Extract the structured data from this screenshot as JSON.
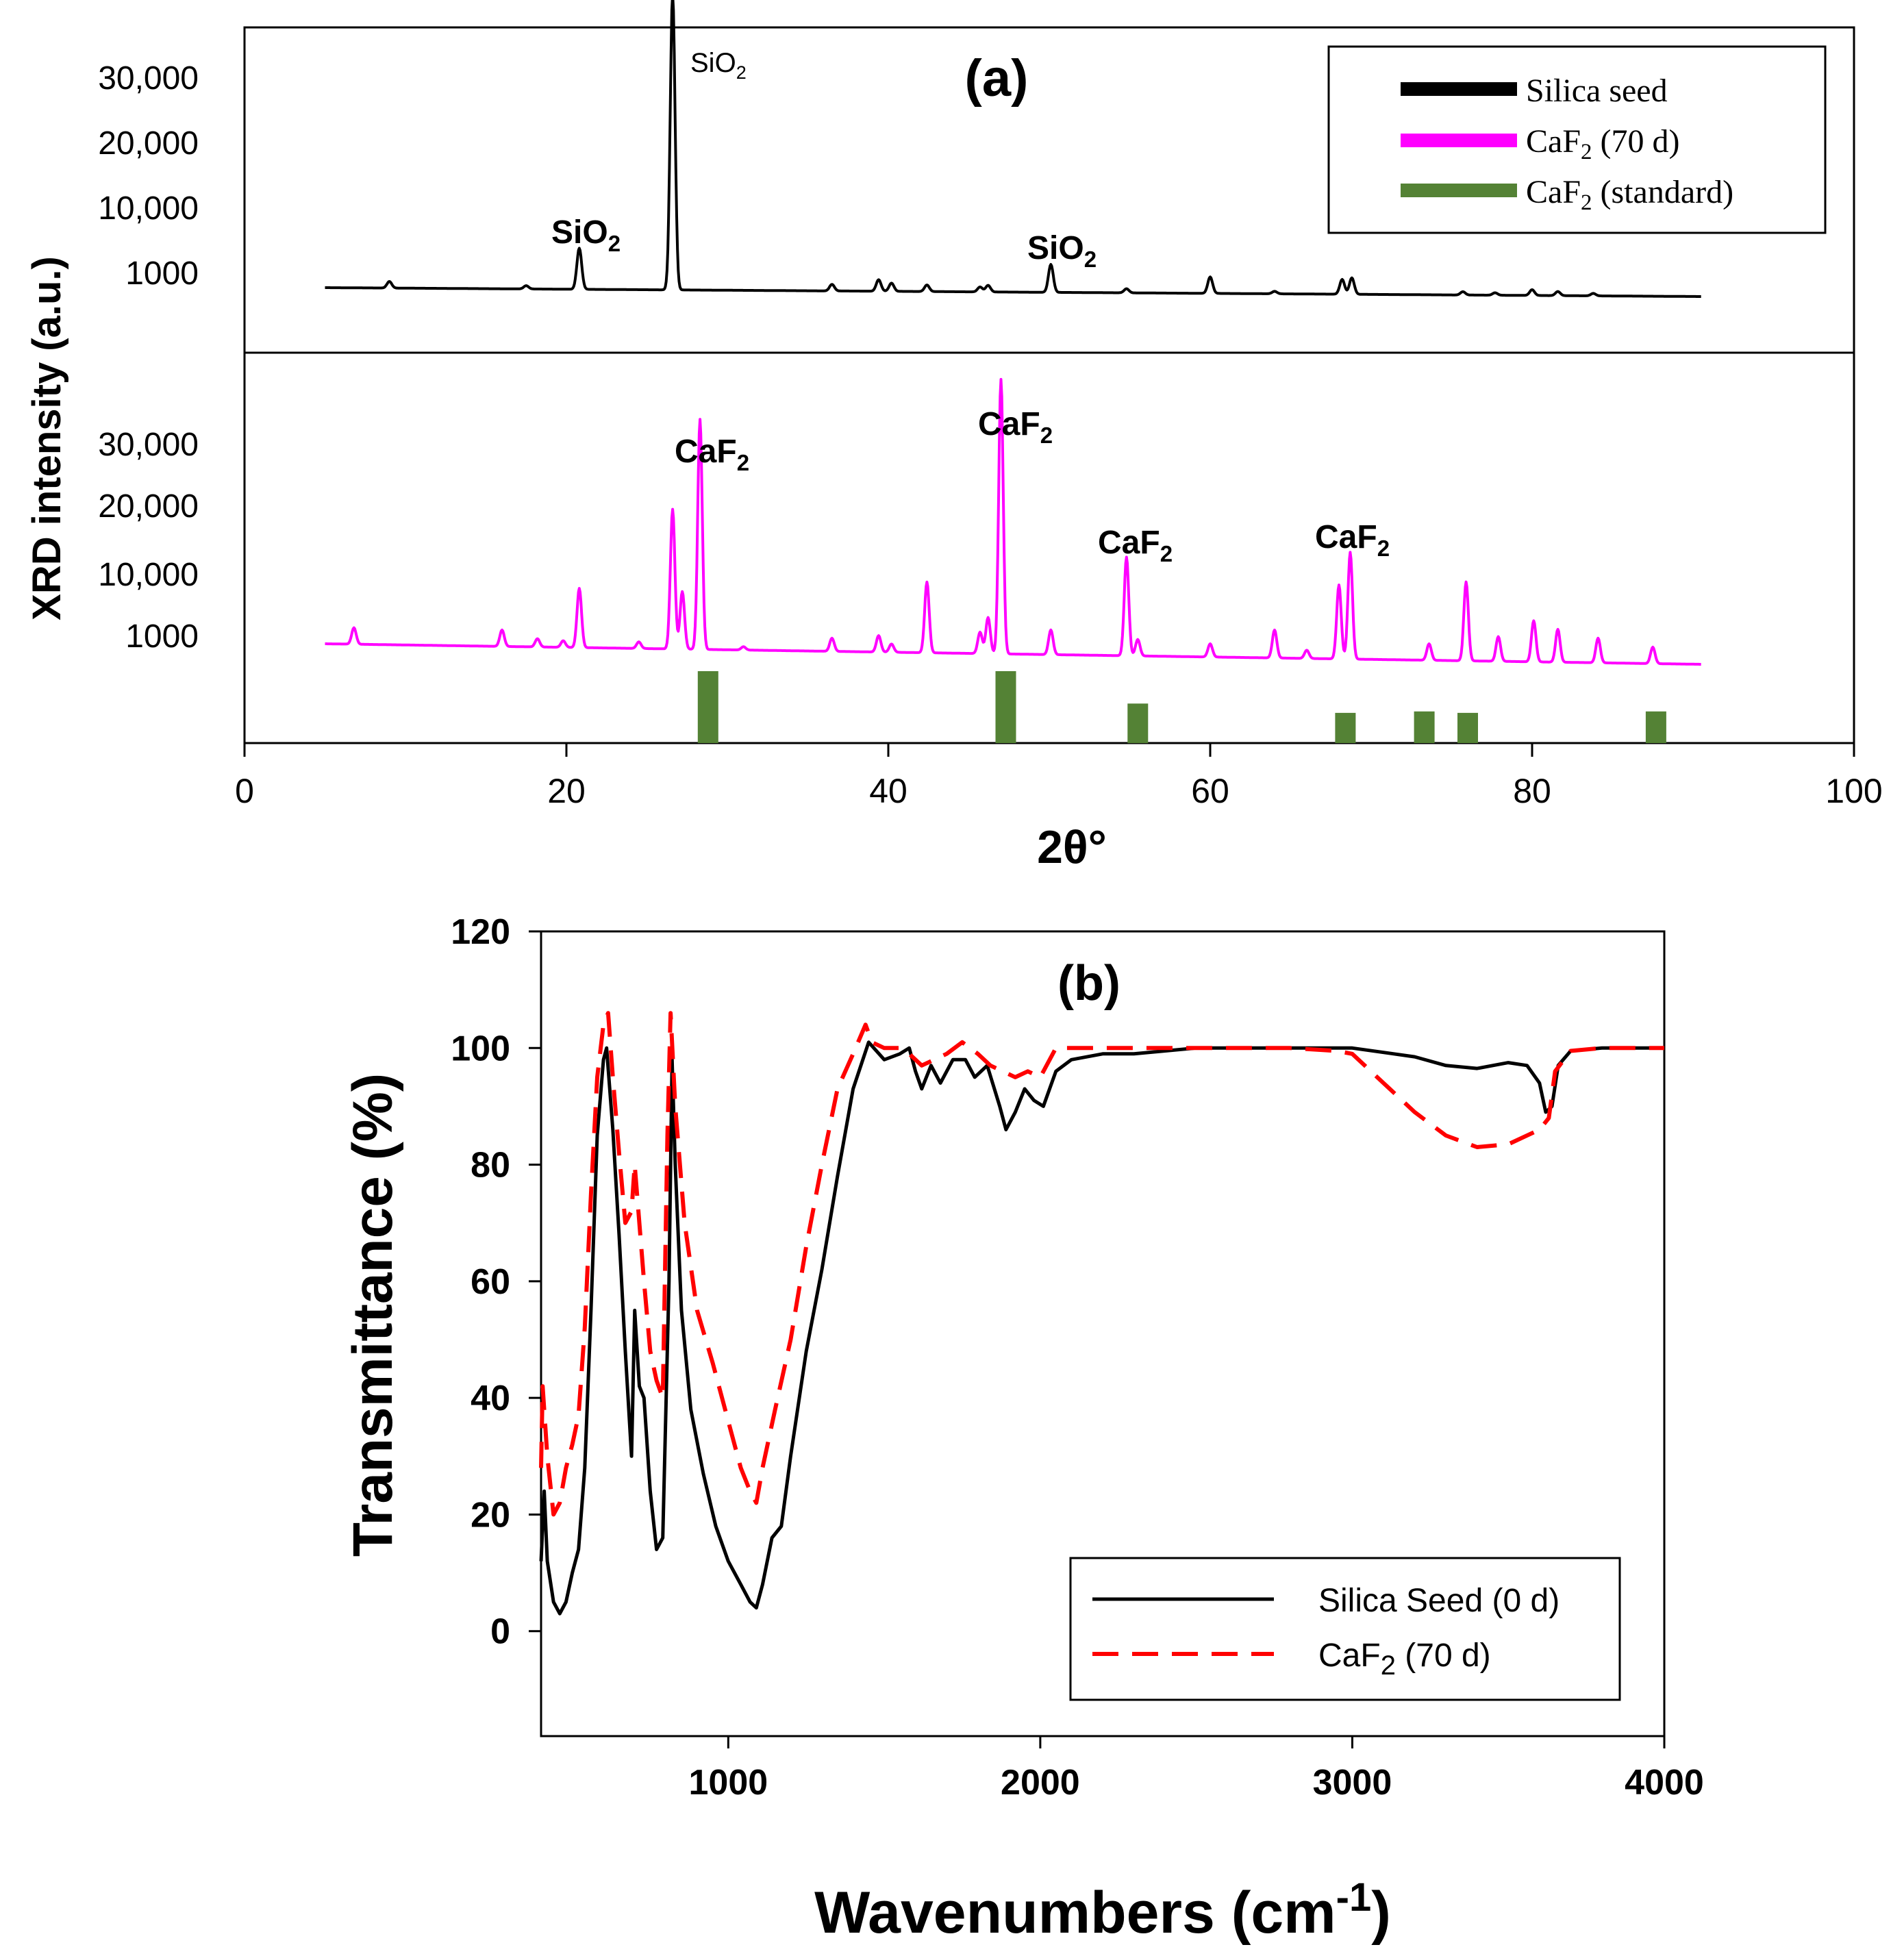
{
  "chart_data": [
    {
      "panel": "(a)",
      "type": "line",
      "title": "(a)",
      "xlabel": "2θ°",
      "ylabel": "XRD intensity (a.u.)",
      "xlim": [
        0,
        100
      ],
      "x_ticks": [
        "0",
        "20",
        "40",
        "60",
        "80",
        "100"
      ],
      "y_ticks": [
        "30,000",
        "20,000",
        "10,000",
        "1000"
      ],
      "legend": {
        "position": "top-right",
        "entries": [
          {
            "label": "Silica seed",
            "color": "#000000"
          },
          {
            "label_main": "CaF",
            "label_sub": "2",
            "label_rest": " (70 d)",
            "color": "#ff00ff"
          },
          {
            "label_main": "CaF",
            "label_sub": "2",
            "label_rest": " (standard)",
            "color": "#548235"
          }
        ]
      },
      "annotations": [
        {
          "main": "SiO",
          "sub": "2"
        },
        {
          "main": "SiO",
          "sub": "2"
        },
        {
          "main": "SiO",
          "sub": "2"
        },
        {
          "main": "CaF",
          "sub": "2"
        },
        {
          "main": "CaF",
          "sub": "2"
        },
        {
          "main": "CaF",
          "sub": "2"
        },
        {
          "main": "CaF",
          "sub": "2"
        }
      ],
      "series": [
        {
          "name": "Silica seed",
          "color": "#000000",
          "peaks": [
            {
              "x": 9.0,
              "h": 0.08
            },
            {
              "x": 17.5,
              "h": 0.04
            },
            {
              "x": 20.8,
              "h": 0.5
            },
            {
              "x": 26.6,
              "h": 3.6
            },
            {
              "x": 36.5,
              "h": 0.08
            },
            {
              "x": 39.4,
              "h": 0.14
            },
            {
              "x": 40.2,
              "h": 0.1
            },
            {
              "x": 42.4,
              "h": 0.08
            },
            {
              "x": 45.7,
              "h": 0.06
            },
            {
              "x": 46.2,
              "h": 0.08
            },
            {
              "x": 50.1,
              "h": 0.34
            },
            {
              "x": 54.8,
              "h": 0.05
            },
            {
              "x": 60.0,
              "h": 0.2
            },
            {
              "x": 64.0,
              "h": 0.03
            },
            {
              "x": 68.2,
              "h": 0.18
            },
            {
              "x": 68.8,
              "h": 0.2
            },
            {
              "x": 75.7,
              "h": 0.04
            },
            {
              "x": 77.7,
              "h": 0.03
            },
            {
              "x": 80.0,
              "h": 0.07
            },
            {
              "x": 81.6,
              "h": 0.05
            },
            {
              "x": 83.8,
              "h": 0.03
            }
          ]
        },
        {
          "name": "CaF2 (70 d)",
          "color": "#ff00ff",
          "peaks": [
            {
              "x": 6.8,
              "h": 0.2
            },
            {
              "x": 16.0,
              "h": 0.2
            },
            {
              "x": 18.2,
              "h": 0.1
            },
            {
              "x": 19.8,
              "h": 0.08
            },
            {
              "x": 20.8,
              "h": 0.72
            },
            {
              "x": 24.5,
              "h": 0.08
            },
            {
              "x": 26.6,
              "h": 1.7
            },
            {
              "x": 27.2,
              "h": 0.7
            },
            {
              "x": 28.3,
              "h": 2.8
            },
            {
              "x": 31.0,
              "h": 0.04
            },
            {
              "x": 36.5,
              "h": 0.16
            },
            {
              "x": 39.4,
              "h": 0.2
            },
            {
              "x": 40.2,
              "h": 0.1
            },
            {
              "x": 42.4,
              "h": 0.86
            },
            {
              "x": 45.7,
              "h": 0.26
            },
            {
              "x": 46.2,
              "h": 0.44
            },
            {
              "x": 47.0,
              "h": 3.34
            },
            {
              "x": 50.1,
              "h": 0.3
            },
            {
              "x": 54.8,
              "h": 1.2
            },
            {
              "x": 55.5,
              "h": 0.2
            },
            {
              "x": 60.0,
              "h": 0.16
            },
            {
              "x": 64.0,
              "h": 0.34
            },
            {
              "x": 66.0,
              "h": 0.1
            },
            {
              "x": 68.0,
              "h": 0.9
            },
            {
              "x": 68.7,
              "h": 1.3
            },
            {
              "x": 73.6,
              "h": 0.2
            },
            {
              "x": 75.9,
              "h": 0.96
            },
            {
              "x": 77.9,
              "h": 0.3
            },
            {
              "x": 80.1,
              "h": 0.5
            },
            {
              "x": 81.6,
              "h": 0.4
            },
            {
              "x": 84.1,
              "h": 0.3
            },
            {
              "x": 87.5,
              "h": 0.2
            }
          ]
        },
        {
          "name": "CaF2 (standard)",
          "color": "#548235",
          "type": "bar",
          "bars": [
            {
              "x": 28.8,
              "rel": 1.0
            },
            {
              "x": 47.3,
              "rel": 1.0
            },
            {
              "x": 55.5,
              "rel": 0.55
            },
            {
              "x": 68.4,
              "rel": 0.42
            },
            {
              "x": 73.3,
              "rel": 0.44
            },
            {
              "x": 76.0,
              "rel": 0.42
            },
            {
              "x": 87.7,
              "rel": 0.44
            }
          ]
        }
      ]
    },
    {
      "panel": "(b)",
      "type": "line",
      "title": "(b)",
      "xlabel_main": "Wavenumbers (cm",
      "xlabel_sup": "-1",
      "xlabel_end": ")",
      "ylabel": "Transmittance (%)",
      "xlim": [
        400,
        4000
      ],
      "ylim": [
        -18,
        120
      ],
      "x_ticks": [
        1000,
        2000,
        3000,
        4000
      ],
      "y_ticks": [
        0,
        20,
        40,
        60,
        80,
        100,
        120
      ],
      "legend": {
        "position": "bottom-right",
        "entries": [
          {
            "label": "Silica Seed (0 d)",
            "color": "#000000",
            "dash": "solid"
          },
          {
            "label_main": "CaF",
            "label_sub": "2",
            "label_rest": " (70 d)",
            "color": "#ff0000",
            "dash": "dashed"
          }
        ]
      },
      "series": [
        {
          "name": "Silica Seed (0 d)",
          "color": "#000000",
          "points": [
            [
              400,
              12
            ],
            [
              410,
              24
            ],
            [
              420,
              12
            ],
            [
              440,
              5
            ],
            [
              460,
              3
            ],
            [
              480,
              5
            ],
            [
              500,
              10
            ],
            [
              520,
              14
            ],
            [
              540,
              28
            ],
            [
              560,
              55
            ],
            [
              580,
              85
            ],
            [
              600,
              98
            ],
            [
              610,
              100
            ],
            [
              630,
              86
            ],
            [
              650,
              68
            ],
            [
              670,
              48
            ],
            [
              690,
              30
            ],
            [
              700,
              55
            ],
            [
              715,
              42
            ],
            [
              730,
              40
            ],
            [
              750,
              24
            ],
            [
              770,
              14
            ],
            [
              790,
              16
            ],
            [
              810,
              60
            ],
            [
              820,
              98
            ],
            [
              830,
              80
            ],
            [
              850,
              55
            ],
            [
              880,
              38
            ],
            [
              920,
              27
            ],
            [
              960,
              18
            ],
            [
              1000,
              12
            ],
            [
              1040,
              8
            ],
            [
              1070,
              5
            ],
            [
              1090,
              4
            ],
            [
              1110,
              8
            ],
            [
              1140,
              16
            ],
            [
              1170,
              18
            ],
            [
              1200,
              30
            ],
            [
              1250,
              48
            ],
            [
              1300,
              62
            ],
            [
              1350,
              78
            ],
            [
              1400,
              93
            ],
            [
              1450,
              101
            ],
            [
              1500,
              98
            ],
            [
              1550,
              99
            ],
            [
              1580,
              100
            ],
            [
              1600,
              96
            ],
            [
              1620,
              93
            ],
            [
              1650,
              97
            ],
            [
              1680,
              94
            ],
            [
              1720,
              98
            ],
            [
              1760,
              98
            ],
            [
              1790,
              95
            ],
            [
              1830,
              97
            ],
            [
              1870,
              90
            ],
            [
              1890,
              86
            ],
            [
              1920,
              89
            ],
            [
              1950,
              93
            ],
            [
              1980,
              91
            ],
            [
              2010,
              90
            ],
            [
              2050,
              96
            ],
            [
              2100,
              98
            ],
            [
              2200,
              99
            ],
            [
              2300,
              99
            ],
            [
              2500,
              100
            ],
            [
              2800,
              100
            ],
            [
              3000,
              100
            ],
            [
              3200,
              98.5
            ],
            [
              3300,
              97
            ],
            [
              3400,
              96.5
            ],
            [
              3500,
              97.5
            ],
            [
              3560,
              97
            ],
            [
              3600,
              94
            ],
            [
              3620,
              89
            ],
            [
              3640,
              90
            ],
            [
              3660,
              97
            ],
            [
              3700,
              99.5
            ],
            [
              3800,
              100
            ],
            [
              3900,
              100
            ],
            [
              4000,
              100
            ]
          ]
        },
        {
          "name": "CaF2 (70 d)",
          "color": "#ff0000",
          "points": [
            [
              400,
              28
            ],
            [
              405,
              42
            ],
            [
              420,
              30
            ],
            [
              440,
              20
            ],
            [
              460,
              22
            ],
            [
              480,
              28
            ],
            [
              500,
              32
            ],
            [
              520,
              37
            ],
            [
              540,
              52
            ],
            [
              560,
              75
            ],
            [
              580,
              95
            ],
            [
              600,
              104
            ],
            [
              615,
              106
            ],
            [
              630,
              95
            ],
            [
              650,
              82
            ],
            [
              670,
              70
            ],
            [
              690,
              72
            ],
            [
              700,
              80
            ],
            [
              715,
              70
            ],
            [
              730,
              60
            ],
            [
              750,
              48
            ],
            [
              770,
              43
            ],
            [
              790,
              40
            ],
            [
              805,
              85
            ],
            [
              815,
              106
            ],
            [
              830,
              90
            ],
            [
              860,
              70
            ],
            [
              900,
              55
            ],
            [
              950,
              46
            ],
            [
              1000,
              36
            ],
            [
              1040,
              28
            ],
            [
              1070,
              24
            ],
            [
              1090,
              22
            ],
            [
              1110,
              28
            ],
            [
              1150,
              38
            ],
            [
              1200,
              50
            ],
            [
              1250,
              66
            ],
            [
              1300,
              80
            ],
            [
              1350,
              93
            ],
            [
              1400,
              99
            ],
            [
              1440,
              104
            ],
            [
              1460,
              101
            ],
            [
              1500,
              100
            ],
            [
              1550,
              100
            ],
            [
              1580,
              99
            ],
            [
              1620,
              97
            ],
            [
              1660,
              98
            ],
            [
              1700,
              99
            ],
            [
              1750,
              101
            ],
            [
              1800,
              99
            ],
            [
              1840,
              97
            ],
            [
              1880,
              96
            ],
            [
              1920,
              95
            ],
            [
              1960,
              96
            ],
            [
              2000,
              95
            ],
            [
              2050,
              100
            ],
            [
              2200,
              100
            ],
            [
              2500,
              100
            ],
            [
              2800,
              100
            ],
            [
              2950,
              99.5
            ],
            [
              3000,
              99
            ],
            [
              3100,
              94
            ],
            [
              3200,
              89
            ],
            [
              3300,
              85
            ],
            [
              3400,
              83
            ],
            [
              3500,
              83.5
            ],
            [
              3600,
              86
            ],
            [
              3630,
              88
            ],
            [
              3650,
              96
            ],
            [
              3700,
              99.5
            ],
            [
              3800,
              100
            ],
            [
              4000,
              100
            ]
          ]
        }
      ]
    }
  ]
}
